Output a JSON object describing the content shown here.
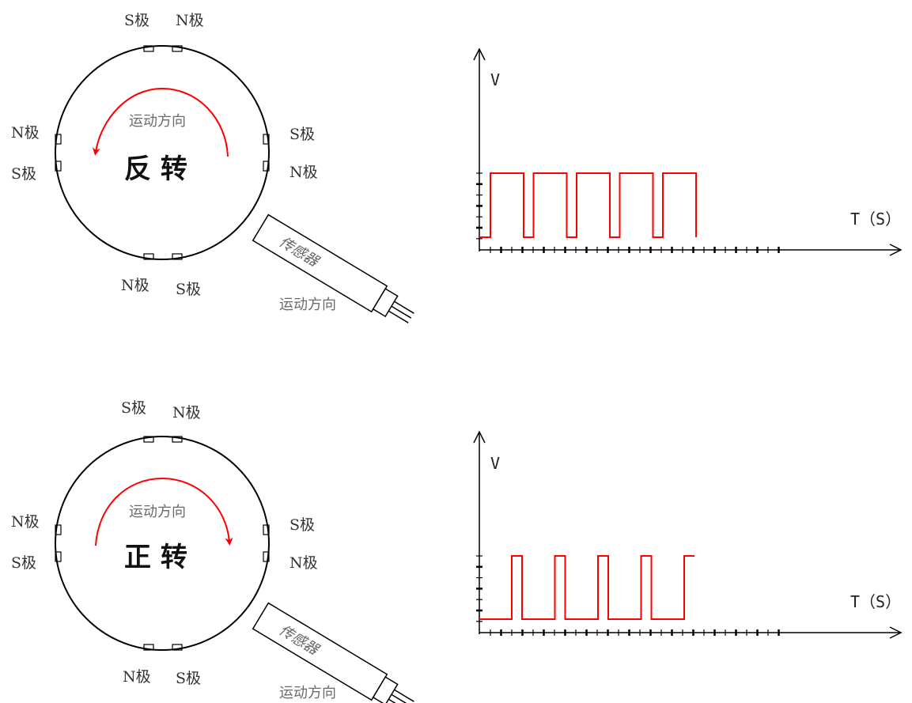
{
  "panels": [
    {
      "id": "reverse",
      "rotation_label": "反 转",
      "direction_label": "运动方向",
      "sensor_label": "传感器",
      "sensor_motion_label": "运动方向",
      "poles": {
        "top_left": "S极",
        "top_right": "N极",
        "left_upper": "N极",
        "left_lower": "S极",
        "right_upper": "S极",
        "right_lower": "N极",
        "bottom_left": "N极",
        "bottom_right": "S极"
      },
      "arrow_direction": "counterclockwise",
      "chart": {
        "y_label": "V",
        "x_label": "T（S）",
        "waveform": "reverse",
        "pulses": 5
      }
    },
    {
      "id": "forward",
      "rotation_label": "正 转",
      "direction_label": "运动方向",
      "sensor_label": "传感器",
      "sensor_motion_label": "运动方向",
      "poles": {
        "top_left": "S极",
        "top_right": "N极",
        "left_upper": "N极",
        "left_lower": "S极",
        "right_upper": "S极",
        "right_lower": "N极",
        "bottom_left": "N极",
        "bottom_right": "S极"
      },
      "arrow_direction": "clockwise",
      "chart": {
        "y_label": "V",
        "x_label": "T（S）",
        "waveform": "forward",
        "pulses": 5
      }
    }
  ],
  "colors": {
    "line": "#000000",
    "signal": "#ff0000",
    "gray_text": "#6b6b6b"
  }
}
